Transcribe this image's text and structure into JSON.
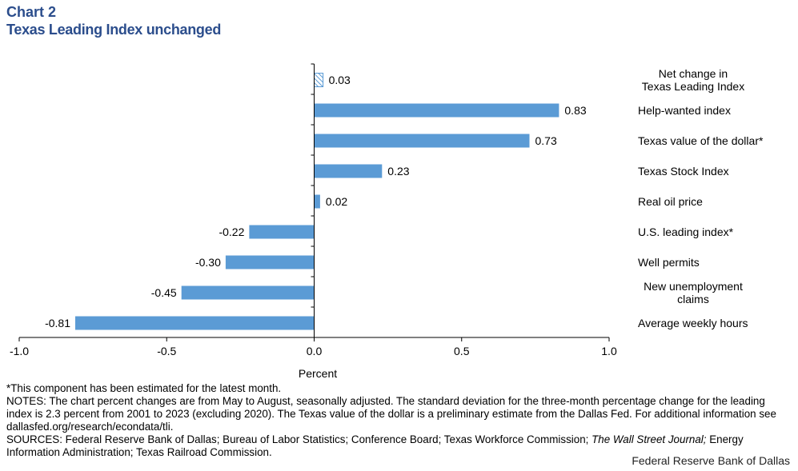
{
  "header": {
    "chart_label": "Chart 2",
    "title": "Texas Leading Index unchanged"
  },
  "chart_data": {
    "type": "bar",
    "orientation": "horizontal",
    "categories": [
      "Net change in Texas Leading Index",
      "Help-wanted index",
      "Texas value of the dollar*",
      "Texas Stock Index",
      "Real oil price",
      "U.S. leading index*",
      "Well permits",
      "New unemployment claims",
      "Average weekly hours"
    ],
    "category_lines": [
      [
        "Net change in",
        "Texas Leading Index"
      ],
      [
        "Help-wanted index"
      ],
      [
        "Texas value of the dollar*"
      ],
      [
        "Texas Stock Index"
      ],
      [
        "Real oil price"
      ],
      [
        "U.S. leading index*"
      ],
      [
        "Well permits"
      ],
      [
        "New unemployment",
        "claims"
      ],
      [
        "Average weekly hours"
      ]
    ],
    "values": [
      0.03,
      0.83,
      0.73,
      0.23,
      0.02,
      -0.22,
      -0.3,
      -0.45,
      -0.81
    ],
    "value_labels": [
      "0.03",
      "0.83",
      "0.73",
      "0.23",
      "0.02",
      "-0.22",
      "-0.30",
      "-0.45",
      "-0.81"
    ],
    "hatched_categories": [
      "Net change in Texas Leading Index"
    ],
    "xlabel": "Percent",
    "xlim": [
      -1.0,
      1.0
    ],
    "xticks": [
      -1.0,
      -0.5,
      0.0,
      0.5,
      1.0
    ],
    "xtick_labels": [
      "-1.0",
      "-0.5",
      "0.0",
      "0.5",
      "1.0"
    ],
    "grid": false,
    "bar_color": "#5b9bd5"
  },
  "notes": {
    "estimated": "*This component has been estimated for the latest month.",
    "notes_text": "NOTES: The chart percent changes are from May to August, seasonally adjusted. The standard deviation for the three-month percentage change for the leading index is 2.3 percent from 2001 to 2023 (excluding 2020). The Texas value of the dollar is a preliminary estimate from the Dallas Fed. For additional information see dallasfed.org/research/econdata/tli.",
    "sources_before": "SOURCES: Federal Reserve Bank of Dallas; Bureau of Labor Statistics; Conference Board; Texas Workforce Commission; ",
    "sources_italic": "The Wall Street Journal;",
    "sources_after": " Energy Information Administration; Texas Railroad Commission."
  },
  "footer": {
    "credit": "Federal Reserve Bank of Dallas"
  }
}
